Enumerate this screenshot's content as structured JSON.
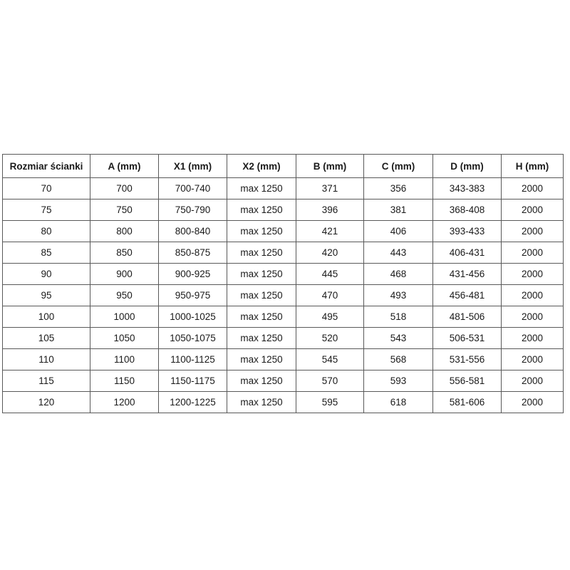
{
  "table": {
    "name": "shower-wall-size-specification-table",
    "border_color": "#595959",
    "text_color": "#1a1a1a",
    "background_color": "#ffffff",
    "columns": [
      "Rozmiar ścianki",
      "A (mm)",
      "X1 (mm)",
      "X2 (mm)",
      "B (mm)",
      "C (mm)",
      "D (mm)",
      "H (mm)"
    ],
    "rows": [
      [
        "70",
        "700",
        "700-740",
        "max 1250",
        "371",
        "356",
        "343-383",
        "2000"
      ],
      [
        "75",
        "750",
        "750-790",
        "max 1250",
        "396",
        "381",
        "368-408",
        "2000"
      ],
      [
        "80",
        "800",
        "800-840",
        "max 1250",
        "421",
        "406",
        "393-433",
        "2000"
      ],
      [
        "85",
        "850",
        "850-875",
        "max 1250",
        "420",
        "443",
        "406-431",
        "2000"
      ],
      [
        "90",
        "900",
        "900-925",
        "max 1250",
        "445",
        "468",
        "431-456",
        "2000"
      ],
      [
        "95",
        "950",
        "950-975",
        "max 1250",
        "470",
        "493",
        "456-481",
        "2000"
      ],
      [
        "100",
        "1000",
        "1000-1025",
        "max 1250",
        "495",
        "518",
        "481-506",
        "2000"
      ],
      [
        "105",
        "1050",
        "1050-1075",
        "max 1250",
        "520",
        "543",
        "506-531",
        "2000"
      ],
      [
        "110",
        "1100",
        "1100-1125",
        "max 1250",
        "545",
        "568",
        "531-556",
        "2000"
      ],
      [
        "115",
        "1150",
        "1150-1175",
        "max 1250",
        "570",
        "593",
        "556-581",
        "2000"
      ],
      [
        "120",
        "1200",
        "1200-1225",
        "max 1250",
        "595",
        "618",
        "581-606",
        "2000"
      ]
    ]
  }
}
